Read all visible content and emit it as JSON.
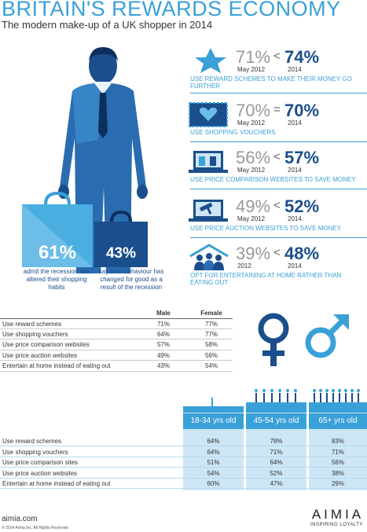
{
  "header": {
    "title": "BRITAIN'S REWARDS ECONOMY",
    "subtitle": "The modern make-up of a UK shopper in 2014"
  },
  "bags": [
    {
      "percent": "61%",
      "text": "admit the recession has altered their shopping habits"
    },
    {
      "percent": "43%",
      "text": "say their behaviour has changed for good as a result of the recession"
    }
  ],
  "stats": [
    {
      "icon": "star-icon",
      "old": "71%",
      "op": "<",
      "new": "74%",
      "old_label": "May 2012",
      "new_label": "2014",
      "desc": "USE REWARD SCHEMES TO MAKE THEIR MONEY GO FURTHER"
    },
    {
      "icon": "voucher-icon",
      "old": "70%",
      "op": "=",
      "new": "70%",
      "old_label": "May 2012",
      "new_label": "2014",
      "desc": "USE SHOPPING VOUCHERS"
    },
    {
      "icon": "laptop-comparison-icon",
      "old": "56%",
      "op": "<",
      "new": "57%",
      "old_label": "May 2012",
      "new_label": "2014",
      "desc": "USE PRICE COMPARISON WEBSITES TO SAVE MONEY"
    },
    {
      "icon": "laptop-auction-icon",
      "old": "49%",
      "op": "<",
      "new": "52%",
      "old_label": "May 2012",
      "new_label": "2014",
      "desc": "USE PRICE AUCTION WEBSITES TO SAVE MONEY"
    },
    {
      "icon": "home-people-icon",
      "old": "39%",
      "op": "<",
      "new": "48%",
      "old_label": "2012",
      "new_label": "2014",
      "desc": "OPT FOR ENTERTAINING AT HOME RATHER THAN EATING OUT"
    }
  ],
  "gender_table": {
    "headers": [
      "Male",
      "Female"
    ],
    "rows": [
      {
        "label": "Use reward schemes",
        "male": "71%",
        "female": "77%"
      },
      {
        "label": "Use shopping vouchers",
        "male": "64%",
        "female": "77%"
      },
      {
        "label": "Use price comparison websites",
        "male": "57%",
        "female": "58%"
      },
      {
        "label": "Use price auction websites",
        "male": "49%",
        "female": "56%"
      },
      {
        "label": "Entertain at home instead of eating out",
        "male": "43%",
        "female": "54%"
      }
    ]
  },
  "age_table": {
    "headers": [
      "18-34 yrs old",
      "45-54 yrs old",
      "65+ yrs old"
    ],
    "rows": [
      {
        "label": "Use reward schemes",
        "a": "64%",
        "b": "78%",
        "c": "83%"
      },
      {
        "label": "Use shopping vouchers",
        "a": "64%",
        "b": "71%",
        "c": "71%"
      },
      {
        "label": "Use price comparison sites",
        "a": "51%",
        "b": "64%",
        "c": "56%"
      },
      {
        "label": "Use price auction websites",
        "a": "54%",
        "b": "52%",
        "c": "38%"
      },
      {
        "label": "Entertain at home instead of eating out",
        "a": "60%",
        "b": "47%",
        "c": "29%"
      }
    ]
  },
  "footer": {
    "url": "aimia.com",
    "copyright": "© 2014 Aimia Inc. All Rights Reserved.",
    "brand": "AIMIA",
    "tagline": "INSPIRING LOYALTY"
  },
  "colors": {
    "accent": "#3aa0d8",
    "navy": "#1b4e8c",
    "grey": "#999999"
  }
}
